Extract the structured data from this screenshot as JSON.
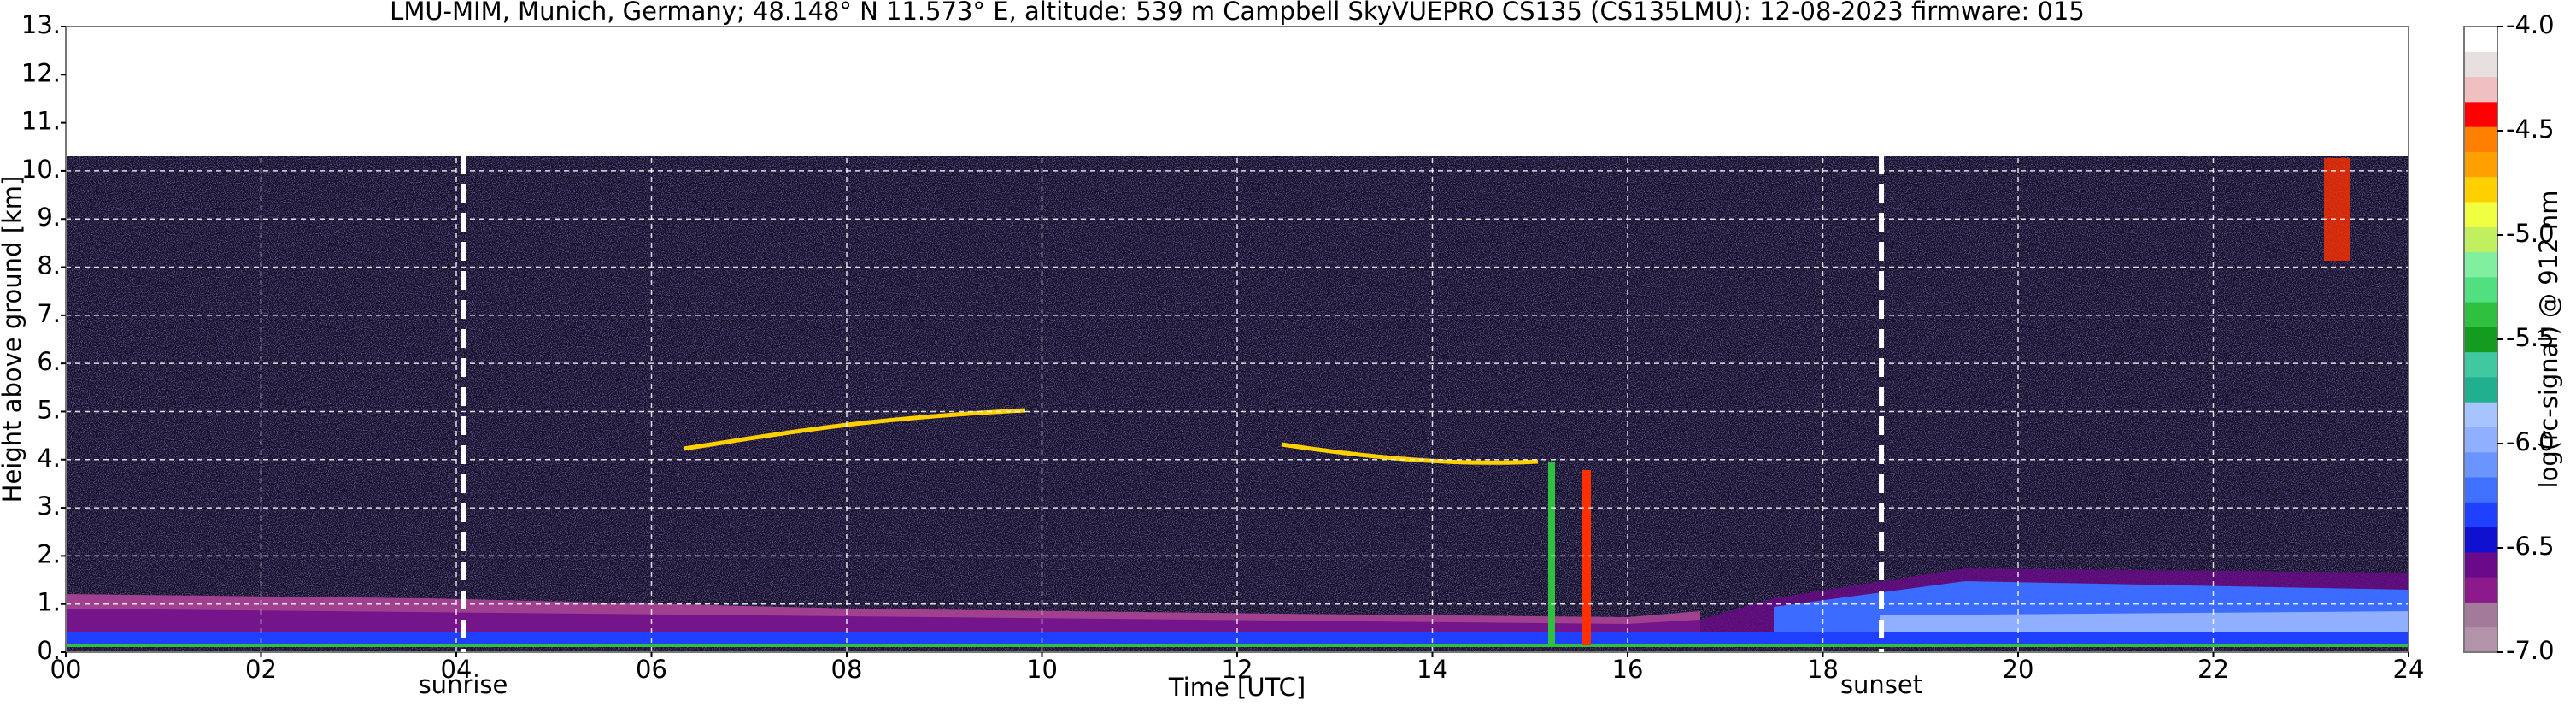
{
  "chart_data": {
    "type": "heatmap",
    "title": "LMU-MIM, Munich, Germany; 48.148° N 11.573° E, altitude: 539 m    Campbell SkyVUEPRO CS135 (CS135LMU): 12-08-2023    firmware: 015",
    "x_label": "Time [UTC]",
    "y_label": "Height above ground [km]",
    "xlim": [
      0,
      24
    ],
    "xticks": [
      {
        "value": 0,
        "label": "00"
      },
      {
        "value": 2,
        "label": "02"
      },
      {
        "value": 4,
        "label": "04"
      },
      {
        "value": 6,
        "label": "06"
      },
      {
        "value": 8,
        "label": "08"
      },
      10,
      12,
      14,
      16,
      18,
      20,
      22,
      24
    ],
    "ylim": [
      0,
      13
    ],
    "yticks": [
      {
        "value": 0,
        "label": "0."
      },
      {
        "value": 1,
        "label": "1."
      },
      {
        "value": 2,
        "label": "2."
      },
      {
        "value": 3,
        "label": "3."
      },
      {
        "value": 4,
        "label": "4."
      },
      {
        "value": 5,
        "label": "5."
      },
      {
        "value": 6,
        "label": "6."
      },
      {
        "value": 7,
        "label": "7."
      },
      {
        "value": 8,
        "label": "8."
      },
      {
        "value": 9,
        "label": "9."
      },
      {
        "value": 10,
        "label": "10."
      },
      {
        "value": 11,
        "label": "11."
      },
      {
        "value": 12,
        "label": "12."
      },
      {
        "value": 13,
        "label": "13."
      }
    ],
    "grid": true,
    "annotations": [
      {
        "text": "sunrise",
        "x": 4.07
      },
      {
        "text": "sunset",
        "x": 18.6
      }
    ],
    "colorbar": {
      "label": "log(rc-signal) @ 912 nm",
      "lim": [
        -7,
        -4
      ],
      "ticks": [
        {
          "value": -7,
          "label": "-7.0"
        },
        {
          "value": -6.5,
          "label": "-6.5"
        },
        {
          "value": -6,
          "label": "-6.0"
        },
        {
          "value": -5.5,
          "label": "-5.5"
        },
        {
          "value": -5,
          "label": "-5.0"
        },
        {
          "value": -4.5,
          "label": "-4.5"
        },
        {
          "value": -4,
          "label": "-4.0"
        }
      ],
      "colors": [
        "#b393a9",
        "#a27a9a",
        "#8c1a8c",
        "#6a0a8a",
        "#1010d0",
        "#2040ff",
        "#4070ff",
        "#6a95ff",
        "#90b0ff",
        "#a8c4ff",
        "#20b090",
        "#40c8a0",
        "#149c20",
        "#30c040",
        "#50e080",
        "#80f0a0",
        "#c0f060",
        "#f0ff40",
        "#ffd000",
        "#ffa000",
        "#ff8000",
        "#ff0000",
        "#f0c0c0",
        "#e8e0e0",
        "#ffffff"
      ]
    }
  }
}
